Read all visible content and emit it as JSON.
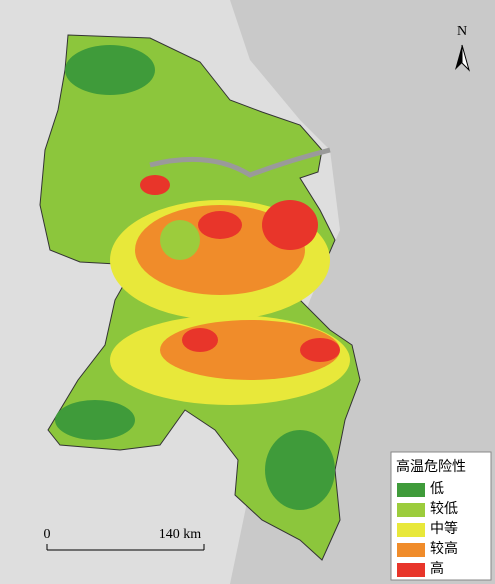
{
  "north_arrow": {
    "label": "N"
  },
  "legend": {
    "title": "高温危险性",
    "items": [
      {
        "label": "低",
        "color": "#3f9b3a"
      },
      {
        "label": "较低",
        "color": "#9ccc3c"
      },
      {
        "label": "中等",
        "color": "#e8e83a"
      },
      {
        "label": "较高",
        "color": "#f08c2a"
      },
      {
        "label": "高",
        "color": "#e8352a"
      }
    ]
  },
  "scale_bar": {
    "labels": [
      "0",
      "140 km"
    ]
  }
}
